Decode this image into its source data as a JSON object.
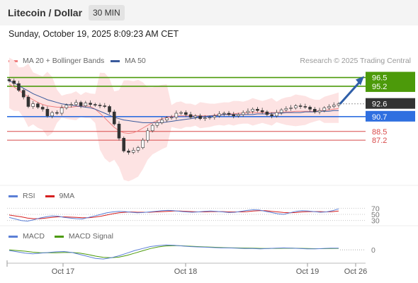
{
  "header": {
    "title": "Litecoin / Dollar",
    "timeframe": "30 MIN"
  },
  "datetime": "Sunday, October 19, 2025 8:09:23 AM CET",
  "legend": {
    "ma20": {
      "label": "MA 20 + Bollinger Bands",
      "color": "#f08080"
    },
    "ma50": {
      "label": "MA 50",
      "color": "#3a5a9c"
    },
    "credit": "Research © 2025 Trading Central"
  },
  "levels": {
    "r2": {
      "label": "96.5",
      "value": 96.5,
      "color": "#4c9a0a"
    },
    "r1": {
      "label": "95.2",
      "value": 95.2,
      "color": "#4c9a0a"
    },
    "last": {
      "label": "92.6",
      "value": 92.6,
      "color": "#333333"
    },
    "pivot": {
      "label": "90.7",
      "value": 90.7,
      "color": "#2f6fe0"
    },
    "s1": {
      "label": "88.5",
      "value": 88.5,
      "color": "#d84a4a"
    },
    "s2": {
      "label": "87.2",
      "value": 87.2,
      "color": "#d84a4a"
    }
  },
  "rsi": {
    "legend_rsi": "RSI",
    "legend_ma": "9MA",
    "rsi_color": "#5b7fd6",
    "ma_color": "#d62020",
    "ticks": [
      "70",
      "50",
      "30"
    ]
  },
  "macd": {
    "legend_macd": "MACD",
    "legend_signal": "MACD Signal",
    "macd_color": "#5b7fd6",
    "signal_color": "#4c9a0a",
    "zero_label": "0"
  },
  "xaxis": {
    "ticks": [
      "Oct 17",
      "Oct 18",
      "Oct 19",
      "Oct 26"
    ]
  },
  "chart_data": [
    {
      "type": "candlestick",
      "ylim": [
        80.5,
        97.5
      ],
      "series": [
        {
          "name": "Price (close)",
          "values": [
            96.0,
            95.6,
            94.6,
            93.6,
            92.2,
            92.6,
            92.1,
            91.8,
            90.8,
            91.3,
            91.2,
            92.0,
            92.4,
            92.5,
            92.8,
            92.3,
            92.7,
            92.5,
            92.4,
            92.3,
            92.2,
            91.4,
            89.6,
            87.5,
            85.6,
            85.4,
            85.7,
            86.1,
            87.2,
            88.6,
            89.4,
            89.8,
            90.2,
            90.5,
            90.6,
            91.2,
            91.3,
            91.0,
            90.6,
            90.8,
            90.4,
            90.5,
            90.6,
            90.8,
            91.1,
            91.2,
            91.0,
            90.8,
            91.0,
            91.3,
            91.5,
            91.8,
            91.6,
            91.4,
            91.0,
            90.8,
            91.3,
            91.7,
            91.9,
            92.0,
            92.3,
            92.2,
            92.1,
            91.8,
            91.4,
            91.6,
            92.0,
            92.2,
            92.4,
            92.6
          ]
        },
        {
          "name": "MA 20",
          "values": [
            95.5,
            95.1,
            94.6,
            94.1,
            93.6,
            93.2,
            92.8,
            92.5,
            92.3,
            92.2,
            92.1,
            92.1,
            92.1,
            92.1,
            92.2,
            92.2,
            92.3,
            92.2,
            91.8,
            91.2,
            90.5,
            89.8,
            89.1,
            88.6,
            88.3,
            88.2,
            88.3,
            88.6,
            89.0,
            89.4,
            89.8,
            90.1,
            90.4,
            90.6,
            90.7,
            90.8,
            90.8,
            90.8,
            90.8,
            90.8,
            90.8,
            90.8,
            90.8,
            90.9,
            91.0,
            91.0,
            91.1,
            91.1,
            91.2,
            91.2,
            91.3,
            91.3,
            91.3,
            91.3,
            91.3,
            91.3,
            91.3,
            91.4,
            91.4,
            91.4,
            91.5,
            91.5,
            91.5,
            91.5,
            91.5,
            91.6,
            91.6,
            91.7,
            91.8,
            91.9
          ]
        },
        {
          "name": "MA 50",
          "values": [
            96.0,
            95.7,
            95.3,
            94.9,
            94.5,
            94.1,
            93.8,
            93.5,
            93.2,
            93.0,
            92.8,
            92.6,
            92.5,
            92.4,
            92.3,
            92.2,
            92.1,
            92.0,
            91.8,
            91.5,
            91.2,
            90.9,
            90.6,
            90.4,
            90.2,
            90.1,
            90.0,
            89.9,
            89.8,
            89.8,
            89.8,
            89.8,
            89.8,
            89.9,
            90.0,
            90.1,
            90.2,
            90.3,
            90.4,
            90.5,
            90.6,
            90.7,
            90.8,
            90.8,
            90.9,
            91.0,
            91.0,
            91.0,
            91.0,
            91.0,
            91.0,
            91.0,
            91.1,
            91.1,
            91.1,
            91.2,
            91.2,
            91.2,
            91.3,
            91.3,
            91.3,
            91.3,
            91.4,
            91.4,
            91.4,
            91.5,
            91.5,
            91.5,
            91.6,
            91.6
          ]
        },
        {
          "name": "Projection",
          "values": [
            92.6,
            96.5
          ]
        }
      ]
    },
    {
      "type": "line",
      "ylim": [
        0,
        100
      ],
      "series": [
        {
          "name": "RSI",
          "values": [
            40,
            35,
            30,
            28,
            32,
            38,
            42,
            45,
            44,
            40,
            38,
            36,
            35,
            40,
            45,
            50,
            55,
            58,
            60,
            59,
            57,
            55,
            56,
            58,
            60,
            62,
            63,
            62,
            60,
            58,
            57,
            58,
            60,
            61,
            60,
            58,
            56,
            57,
            60,
            63,
            65,
            64,
            60,
            56,
            52,
            50,
            55,
            60,
            62,
            61,
            59,
            57,
            58,
            62,
            68
          ]
        },
        {
          "name": "9MA",
          "values": [
            48,
            45,
            42,
            38,
            36,
            36,
            38,
            40,
            42,
            42,
            41,
            40,
            39,
            39,
            41,
            44,
            48,
            52,
            55,
            57,
            58,
            57,
            57,
            57,
            58,
            59,
            60,
            61,
            61,
            60,
            59,
            58,
            58,
            59,
            59,
            59,
            58,
            58,
            58,
            59,
            61,
            62,
            62,
            60,
            58,
            56,
            55,
            56,
            58,
            59,
            59,
            59,
            58,
            59,
            61
          ]
        }
      ],
      "ticks": [
        70,
        50,
        30
      ]
    },
    {
      "type": "line",
      "ylim": [
        -1.6,
        1.2
      ],
      "series": [
        {
          "name": "MACD",
          "values": [
            -0.1,
            -0.3,
            -0.5,
            -0.6,
            -0.5,
            -0.4,
            -0.3,
            -0.25,
            -0.4,
            -0.7,
            -1.0,
            -1.3,
            -1.4,
            -1.2,
            -0.9,
            -0.5,
            -0.1,
            0.2,
            0.5,
            0.65,
            0.75,
            0.7,
            0.6,
            0.5,
            0.45,
            0.4,
            0.35,
            0.3,
            0.3,
            0.25,
            0.2,
            0.2,
            0.15,
            0.2,
            0.25,
            0.3,
            0.25,
            0.2,
            0.15,
            0.15,
            0.2,
            0.25,
            0.25
          ]
        },
        {
          "name": "MACD Signal",
          "values": [
            0.0,
            -0.1,
            -0.2,
            -0.35,
            -0.45,
            -0.45,
            -0.45,
            -0.4,
            -0.4,
            -0.5,
            -0.7,
            -0.95,
            -1.15,
            -1.2,
            -1.1,
            -0.85,
            -0.5,
            -0.15,
            0.2,
            0.45,
            0.6,
            0.65,
            0.62,
            0.55,
            0.5,
            0.45,
            0.4,
            0.35,
            0.32,
            0.3,
            0.27,
            0.25,
            0.22,
            0.21,
            0.22,
            0.24,
            0.25,
            0.23,
            0.2,
            0.18,
            0.18,
            0.2,
            0.22
          ]
        }
      ],
      "zero": 0
    }
  ]
}
